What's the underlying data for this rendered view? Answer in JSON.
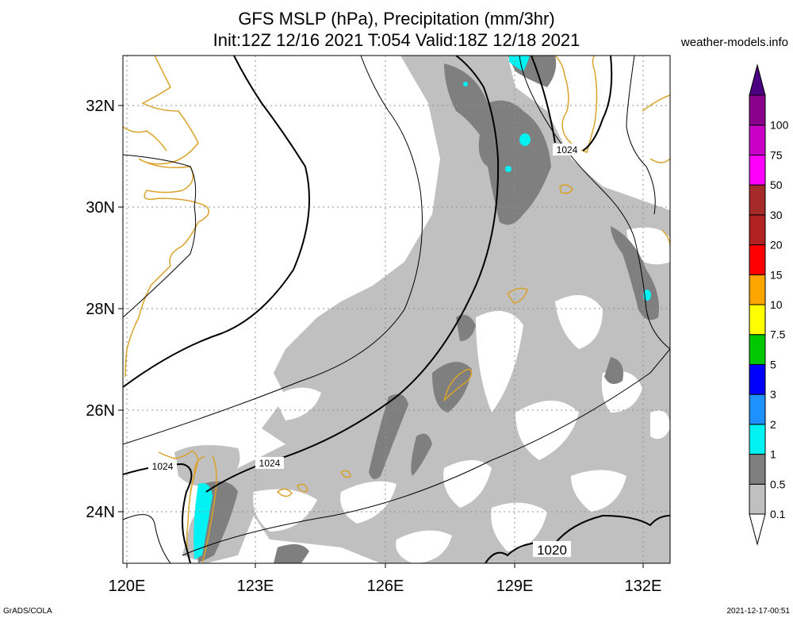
{
  "title": {
    "line1": "GFS MSLP (hPa), Precipitation (mm/3hr)",
    "line2": "Init:12Z 12/16 2021 T:054 Valid:18Z 12/18 2021"
  },
  "site": "weather-models.info",
  "footer": {
    "left": "GrADS/COLA",
    "right": "2021-12-17-00:51"
  },
  "map": {
    "lon_range": [
      120,
      133
    ],
    "lat_range": [
      23,
      33
    ],
    "x_ticks": [
      "120E",
      "123E",
      "126E",
      "129E",
      "132E"
    ],
    "y_ticks": [
      "24N",
      "26N",
      "28N",
      "30N",
      "32N"
    ],
    "grid": true,
    "colors": {
      "coast": "#d9a32b",
      "precip_light": "#c0c0c0",
      "precip_mid": "#7f7f7f",
      "precip_cyan": "#00f2f2",
      "isobar": "#000000"
    },
    "contour_labels": [
      "1024",
      "1024",
      "1024",
      "1020"
    ]
  },
  "colorbar": {
    "levels": [
      "0.1",
      "0.5",
      "1",
      "2",
      "3",
      "5",
      "7.5",
      "10",
      "15",
      "20",
      "30",
      "50",
      "75",
      "100"
    ],
    "colors": [
      "#ffffff",
      "#c0c0c0",
      "#7f7f7f",
      "#00f2f2",
      "#1e90ff",
      "#0000ff",
      "#00c800",
      "#ffff00",
      "#ffa500",
      "#ff0000",
      "#b22222",
      "#a52a2a",
      "#ff00ff",
      "#c800c8",
      "#8b008b",
      "#4b0082"
    ]
  }
}
